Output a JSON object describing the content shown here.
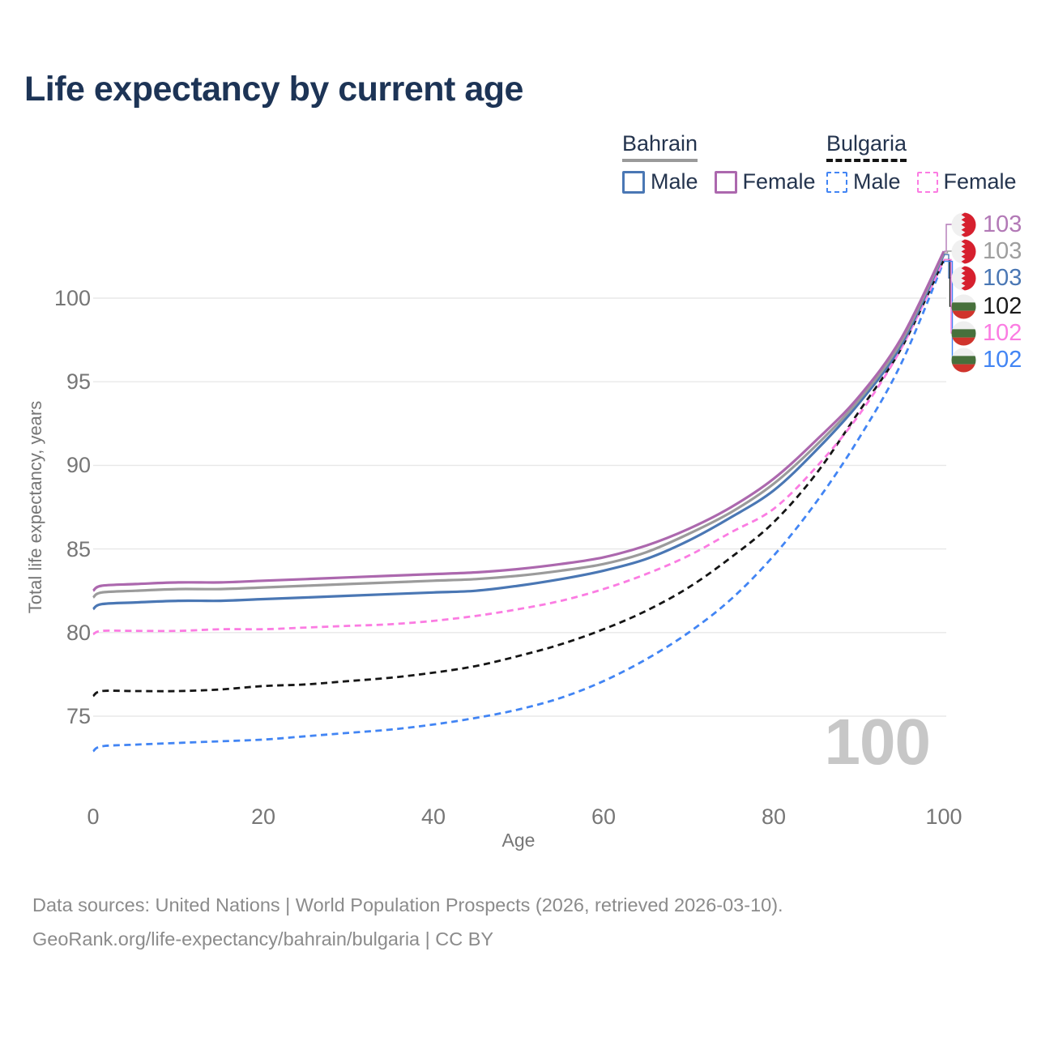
{
  "title": "Life expectancy by current age",
  "legend": {
    "groups": [
      {
        "label": "Bahrain",
        "line_style": "solid",
        "items": [
          {
            "label": "Male",
            "color": "#4a77b4"
          },
          {
            "label": "Female",
            "color": "#ac68ae"
          }
        ]
      },
      {
        "label": "Bulgaria",
        "line_style": "dashed",
        "items": [
          {
            "label": "Male",
            "color": "#4285f4"
          },
          {
            "label": "Female",
            "color": "#fb7ce2"
          }
        ]
      }
    ]
  },
  "axes": {
    "x": {
      "label": "Age",
      "ticks": [
        0,
        20,
        40,
        60,
        80,
        100
      ],
      "range": [
        0,
        100
      ]
    },
    "y": {
      "label": "Total life expectancy, years",
      "ticks": [
        75,
        80,
        85,
        90,
        95,
        100
      ],
      "range": [
        72,
        104
      ]
    }
  },
  "watermark": "100",
  "right_labels": [
    {
      "id": "bahrain-female",
      "value": "103",
      "country": "bahrain",
      "series_index": 0,
      "color": "#b279b6"
    },
    {
      "id": "bahrain-total",
      "value": "103",
      "country": "bahrain",
      "series_index": 1,
      "color": "#9e9e9e"
    },
    {
      "id": "bahrain-male",
      "value": "103",
      "country": "bahrain",
      "series_index": 2,
      "color": "#4a77b4"
    },
    {
      "id": "bulgaria-total",
      "value": "102",
      "country": "bulgaria",
      "series_index": 4,
      "color": "#1a1a1a"
    },
    {
      "id": "bulgaria-female",
      "value": "102",
      "country": "bulgaria",
      "series_index": 3,
      "color": "#fb7ce2"
    },
    {
      "id": "bulgaria-male",
      "value": "102",
      "country": "bulgaria",
      "series_index": 5,
      "color": "#4285f4"
    }
  ],
  "chart_data": {
    "type": "line",
    "title": "Life expectancy by current age",
    "xlabel": "Age",
    "ylabel": "Total life expectancy, years",
    "xlim": [
      0,
      100
    ],
    "ylim": [
      72,
      104
    ],
    "grid": "horizontal-only",
    "legend_position": "top-right",
    "x": [
      0,
      1,
      5,
      10,
      15,
      20,
      25,
      30,
      35,
      40,
      45,
      50,
      55,
      60,
      65,
      70,
      75,
      80,
      85,
      90,
      95,
      100
    ],
    "series": [
      {
        "name": "Bahrain Female",
        "country": "Bahrain",
        "sex": "Female",
        "style": "solid",
        "color": "#ac68ae",
        "values": [
          82.5,
          82.8,
          82.9,
          83.0,
          83.0,
          83.1,
          83.2,
          83.3,
          83.4,
          83.5,
          83.6,
          83.8,
          84.1,
          84.5,
          85.2,
          86.2,
          87.5,
          89.2,
          91.5,
          94.1,
          97.6,
          102.8
        ]
      },
      {
        "name": "Bahrain Total",
        "country": "Bahrain",
        "sex": "Both",
        "style": "solid",
        "color": "#9b9b9b",
        "values": [
          82.1,
          82.4,
          82.5,
          82.6,
          82.6,
          82.7,
          82.8,
          82.9,
          83.0,
          83.1,
          83.2,
          83.4,
          83.7,
          84.1,
          84.8,
          85.9,
          87.2,
          88.9,
          91.2,
          93.9,
          97.4,
          102.7
        ]
      },
      {
        "name": "Bahrain Male",
        "country": "Bahrain",
        "sex": "Male",
        "style": "solid",
        "color": "#4a77b4",
        "values": [
          81.4,
          81.7,
          81.8,
          81.9,
          81.9,
          82.0,
          82.1,
          82.2,
          82.3,
          82.4,
          82.5,
          82.8,
          83.2,
          83.7,
          84.4,
          85.5,
          86.9,
          88.5,
          90.9,
          93.7,
          97.2,
          102.6
        ]
      },
      {
        "name": "Bulgaria Female",
        "country": "Bulgaria",
        "sex": "Female",
        "style": "dashed",
        "color": "#fb7ce2",
        "values": [
          79.9,
          80.1,
          80.1,
          80.1,
          80.2,
          80.2,
          80.3,
          80.4,
          80.5,
          80.7,
          81.0,
          81.4,
          81.9,
          82.6,
          83.5,
          84.6,
          86.0,
          87.4,
          89.9,
          93.0,
          97.0,
          102.3
        ]
      },
      {
        "name": "Bulgaria Total",
        "country": "Bulgaria",
        "sex": "Both",
        "style": "dashed",
        "color": "#151515",
        "values": [
          76.2,
          76.5,
          76.5,
          76.5,
          76.6,
          76.8,
          76.9,
          77.1,
          77.3,
          77.6,
          78.0,
          78.6,
          79.3,
          80.2,
          81.3,
          82.7,
          84.5,
          86.6,
          89.5,
          93.2,
          97.0,
          102.3
        ]
      },
      {
        "name": "Bulgaria Male",
        "country": "Bulgaria",
        "sex": "Male",
        "style": "dashed",
        "color": "#4285f4",
        "values": [
          72.9,
          73.2,
          73.3,
          73.4,
          73.5,
          73.6,
          73.8,
          74.0,
          74.2,
          74.5,
          74.9,
          75.4,
          76.1,
          77.1,
          78.4,
          80.0,
          82.0,
          84.6,
          87.8,
          91.6,
          96.1,
          102.2
        ]
      }
    ]
  },
  "footer": {
    "line1": "Data sources: United Nations | World Population Prospects (2026, retrieved 2026-03-10).",
    "line2": "GeoRank.org/life-expectancy/bahrain/bulgaria | CC BY"
  }
}
